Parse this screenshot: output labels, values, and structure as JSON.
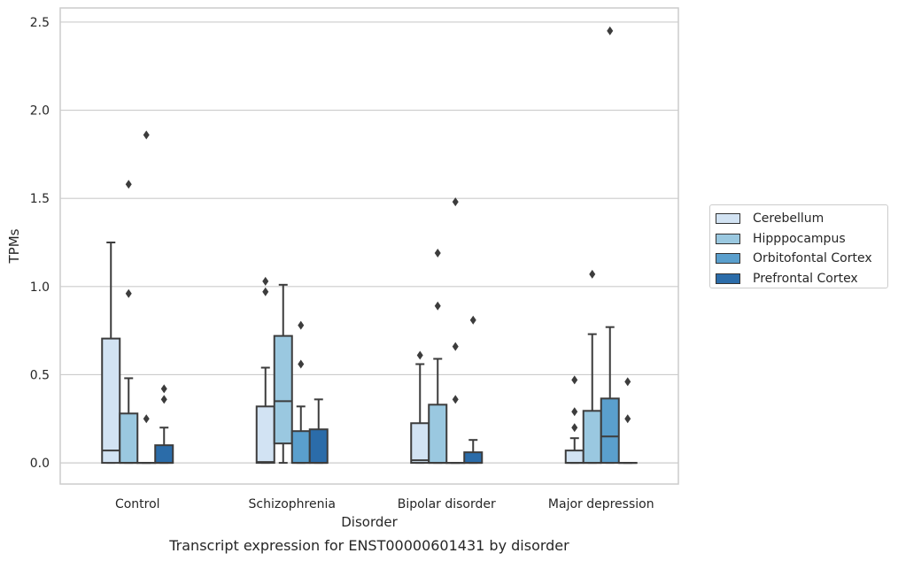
{
  "chart_data": {
    "type": "boxplot",
    "title": "Transcript expression for ENST00000601431 by disorder",
    "xlabel": "Disorder",
    "ylabel": "TPMs",
    "ylim": [
      -0.12,
      2.58
    ],
    "yticks": [
      "0.0",
      "0.5",
      "1.0",
      "1.5",
      "2.0",
      "2.5"
    ],
    "ytick_values": [
      0.0,
      0.5,
      1.0,
      1.5,
      2.0,
      2.5
    ],
    "grid": true,
    "legend_position": "right",
    "categories": [
      "Control",
      "Schizophrenia",
      "Bipolar disorder",
      "Major depression"
    ],
    "series": [
      {
        "name": "Cerebellum",
        "color": "#d2e3f3",
        "boxes": [
          {
            "q1": 0.0,
            "median": 0.07,
            "q3": 0.705,
            "whisker_low": 0.0,
            "whisker_high": 1.25,
            "outliers": []
          },
          {
            "q1": 0.0,
            "median": 0.005,
            "q3": 0.32,
            "whisker_low": 0.0,
            "whisker_high": 0.54,
            "outliers": [
              0.97,
              1.03
            ]
          },
          {
            "q1": 0.0,
            "median": 0.015,
            "q3": 0.225,
            "whisker_low": 0.0,
            "whisker_high": 0.56,
            "outliers": [
              0.61
            ]
          },
          {
            "q1": 0.0,
            "median": 0.0,
            "q3": 0.07,
            "whisker_low": 0.0,
            "whisker_high": 0.14,
            "outliers": [
              0.2,
              0.29,
              0.47
            ]
          }
        ]
      },
      {
        "name": "Hipppocampus",
        "color": "#9ac8e0",
        "boxes": [
          {
            "q1": 0.0,
            "median": 0.0,
            "q3": 0.28,
            "whisker_low": 0.0,
            "whisker_high": 0.48,
            "outliers": [
              0.96,
              1.58
            ]
          },
          {
            "q1": 0.11,
            "median": 0.35,
            "q3": 0.72,
            "whisker_low": 0.0,
            "whisker_high": 1.01,
            "outliers": []
          },
          {
            "q1": 0.0,
            "median": 0.0,
            "q3": 0.33,
            "whisker_low": 0.0,
            "whisker_high": 0.59,
            "outliers": [
              0.89,
              1.19
            ]
          },
          {
            "q1": 0.0,
            "median": 0.0,
            "q3": 0.295,
            "whisker_low": 0.0,
            "whisker_high": 0.73,
            "outliers": [
              1.07
            ]
          }
        ]
      },
      {
        "name": "Orbitofontal Cortex",
        "color": "#5a9fcd",
        "boxes": [
          {
            "q1": 0.0,
            "median": 0.0,
            "q3": 0.0,
            "whisker_low": 0.0,
            "whisker_high": 0.0,
            "outliers": [
              0.25,
              1.86
            ]
          },
          {
            "q1": 0.0,
            "median": 0.0,
            "q3": 0.18,
            "whisker_low": 0.0,
            "whisker_high": 0.32,
            "outliers": [
              0.56,
              0.78
            ]
          },
          {
            "q1": 0.0,
            "median": 0.0,
            "q3": 0.0,
            "whisker_low": 0.0,
            "whisker_high": 0.0,
            "outliers": [
              0.36,
              0.66,
              1.48
            ]
          },
          {
            "q1": 0.0,
            "median": 0.15,
            "q3": 0.365,
            "whisker_low": 0.0,
            "whisker_high": 0.77,
            "outliers": [
              2.45
            ]
          }
        ]
      },
      {
        "name": "Prefrontal Cortex",
        "color": "#2b6ca9",
        "boxes": [
          {
            "q1": 0.0,
            "median": 0.0,
            "q3": 0.1,
            "whisker_low": 0.0,
            "whisker_high": 0.2,
            "outliers": [
              0.36,
              0.42
            ]
          },
          {
            "q1": 0.0,
            "median": 0.0,
            "q3": 0.19,
            "whisker_low": 0.0,
            "whisker_high": 0.36,
            "outliers": []
          },
          {
            "q1": 0.0,
            "median": 0.0,
            "q3": 0.06,
            "whisker_low": 0.0,
            "whisker_high": 0.13,
            "outliers": [
              0.81
            ]
          },
          {
            "q1": 0.0,
            "median": 0.0,
            "q3": 0.0,
            "whisker_low": 0.0,
            "whisker_high": 0.0,
            "outliers": [
              0.25,
              0.46
            ]
          }
        ]
      }
    ]
  }
}
